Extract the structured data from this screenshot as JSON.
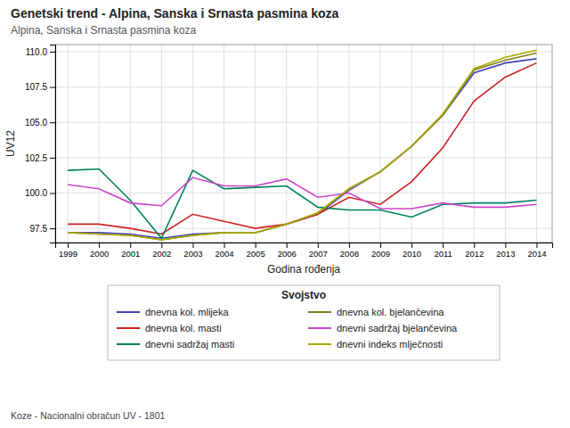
{
  "chart_data": {
    "type": "line",
    "title": "Genetski trend - Alpina, Sanska i Srnasta pasmina koza",
    "subtitle": "Alpina, Sanska i Srnasta pasmina koza",
    "x_label": "Godina rođenja",
    "y_label": "UV12",
    "annotations": [
      "Koze - Nacionalni obračun UV - 1801"
    ],
    "legend_title": "Svojstvo",
    "legend": "bottom",
    "grid": true,
    "x": [
      1999,
      2000,
      2001,
      2002,
      2003,
      2004,
      2005,
      2006,
      2007,
      2008,
      2009,
      2010,
      2011,
      2012,
      2013,
      2014
    ],
    "xlim": [
      1998.6,
      2014.5
    ],
    "xticks": [
      1999,
      2000,
      2001,
      2002,
      2003,
      2004,
      2005,
      2006,
      2007,
      2008,
      2009,
      2010,
      2011,
      2012,
      2013,
      2014
    ],
    "ylim": [
      96.5,
      110.5
    ],
    "yticks": [
      97.5,
      {
        "value": 100.0,
        "label": "100.0"
      },
      102.5,
      {
        "value": 105.0,
        "label": "105.0"
      },
      107.5,
      {
        "value": 110.0,
        "label": "110.0"
      }
    ],
    "series": [
      {
        "name": "dnevna kol. mlijeka",
        "color": "#4444bb",
        "values": [
          97.2,
          97.2,
          97.1,
          96.8,
          97.1,
          97.2,
          97.2,
          97.8,
          98.5,
          100.2,
          101.5,
          103.3,
          105.5,
          108.5,
          109.2,
          109.5
        ]
      },
      {
        "name": "dnevna kol. masti",
        "color": "#cc2222",
        "values": [
          97.8,
          97.8,
          97.5,
          97.1,
          98.5,
          98.0,
          97.5,
          97.8,
          98.5,
          99.7,
          99.2,
          100.8,
          103.2,
          106.5,
          108.2,
          109.2
        ]
      },
      {
        "name": "dnevni sadržaj masti",
        "color": "#008060",
        "values": [
          101.6,
          101.7,
          99.5,
          96.8,
          101.6,
          100.3,
          100.4,
          100.5,
          99.0,
          98.8,
          98.8,
          98.3,
          99.2,
          99.3,
          99.3,
          99.5
        ]
      },
      {
        "name": "dnevna kol. bjelančevina",
        "color": "#808020",
        "values": [
          97.2,
          97.1,
          97.0,
          96.7,
          97.0,
          97.2,
          97.2,
          97.8,
          98.6,
          100.3,
          101.5,
          103.3,
          105.5,
          108.7,
          109.4,
          109.9
        ]
      },
      {
        "name": "dnevni sadržaj bjelančevina",
        "color": "#cc44cc",
        "values": [
          100.6,
          100.3,
          99.3,
          99.1,
          101.1,
          100.5,
          100.5,
          101.0,
          99.7,
          100.0,
          98.9,
          98.9,
          99.3,
          99.0,
          99.0,
          99.2
        ]
      },
      {
        "name": "dnevni indeks mlječnosti",
        "color": "#aaaa00",
        "values": [
          97.2,
          97.1,
          97.0,
          96.7,
          97.0,
          97.2,
          97.2,
          97.8,
          98.6,
          100.3,
          101.5,
          103.3,
          105.6,
          108.8,
          109.6,
          110.1
        ]
      }
    ]
  }
}
